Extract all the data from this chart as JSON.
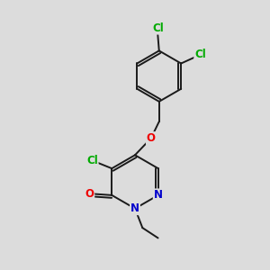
{
  "background_color": "#dcdcdc",
  "bond_color": "#1a1a1a",
  "bond_width": 1.4,
  "atom_colors": {
    "Cl": "#00aa00",
    "O": "#ee0000",
    "N": "#0000cc"
  },
  "font_size": 8.5,
  "font_size_small": 7.5
}
